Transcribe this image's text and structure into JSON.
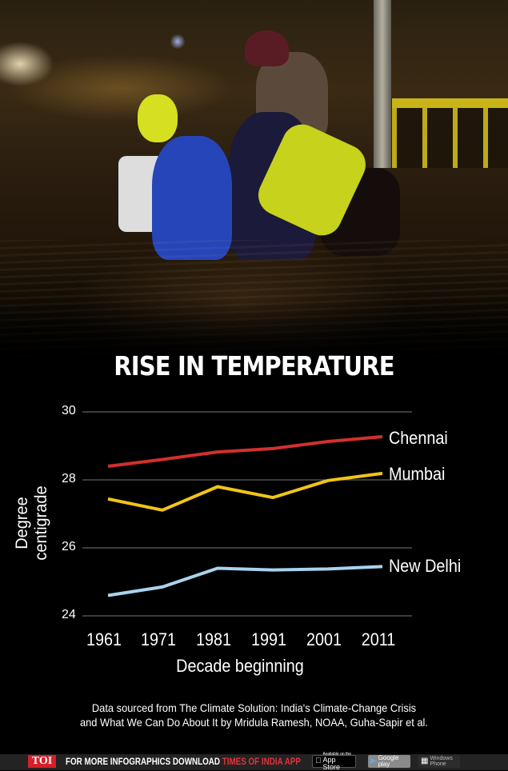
{
  "title": "RISE IN TEMPERATURE",
  "chart_data": {
    "type": "line",
    "title": "RISE IN TEMPERATURE",
    "xlabel": "Decade beginning",
    "ylabel": "Degree centigrade",
    "categories": [
      "1961",
      "1971",
      "1981",
      "1991",
      "2001",
      "2011"
    ],
    "yticks": [
      "30",
      "28",
      "26",
      "24"
    ],
    "ylim": [
      24,
      30
    ],
    "grid": true,
    "legend_position": "inline-right",
    "series": [
      {
        "name": "Chennai",
        "color": "#d0312d",
        "values": [
          28.4,
          28.6,
          28.82,
          28.92,
          29.13,
          29.27
        ]
      },
      {
        "name": "Mumbai",
        "color": "#f0c419",
        "values": [
          27.44,
          27.11,
          27.8,
          27.48,
          27.98,
          28.19
        ]
      },
      {
        "name": "New Delhi",
        "color": "#a9d3ee",
        "values": [
          24.6,
          24.85,
          25.4,
          25.35,
          25.38,
          25.45
        ]
      }
    ]
  },
  "source": {
    "line1": "Data sourced from The Climate Solution: India's Climate-Change Crisis",
    "line2": "and What We Can Do About It by Mridula Ramesh, NOAA, Guha-Sapir et al."
  },
  "footer": {
    "logo": "TOI",
    "text_white": "FOR MORE  INFOGRAPHICS DOWNLOAD ",
    "text_red": "TIMES OF INDIA  APP",
    "badges": {
      "appstore_small": "Available on the",
      "appstore": "App Store",
      "gplay": "Google play",
      "winphone_1": "Windows",
      "winphone_2": "Phone"
    }
  },
  "colors": {
    "background": "#000000",
    "chennai": "#d0312d",
    "mumbai": "#f0c419",
    "new_delhi": "#a9d3ee",
    "gridline": "#777777",
    "toi_red": "#d4202a"
  }
}
